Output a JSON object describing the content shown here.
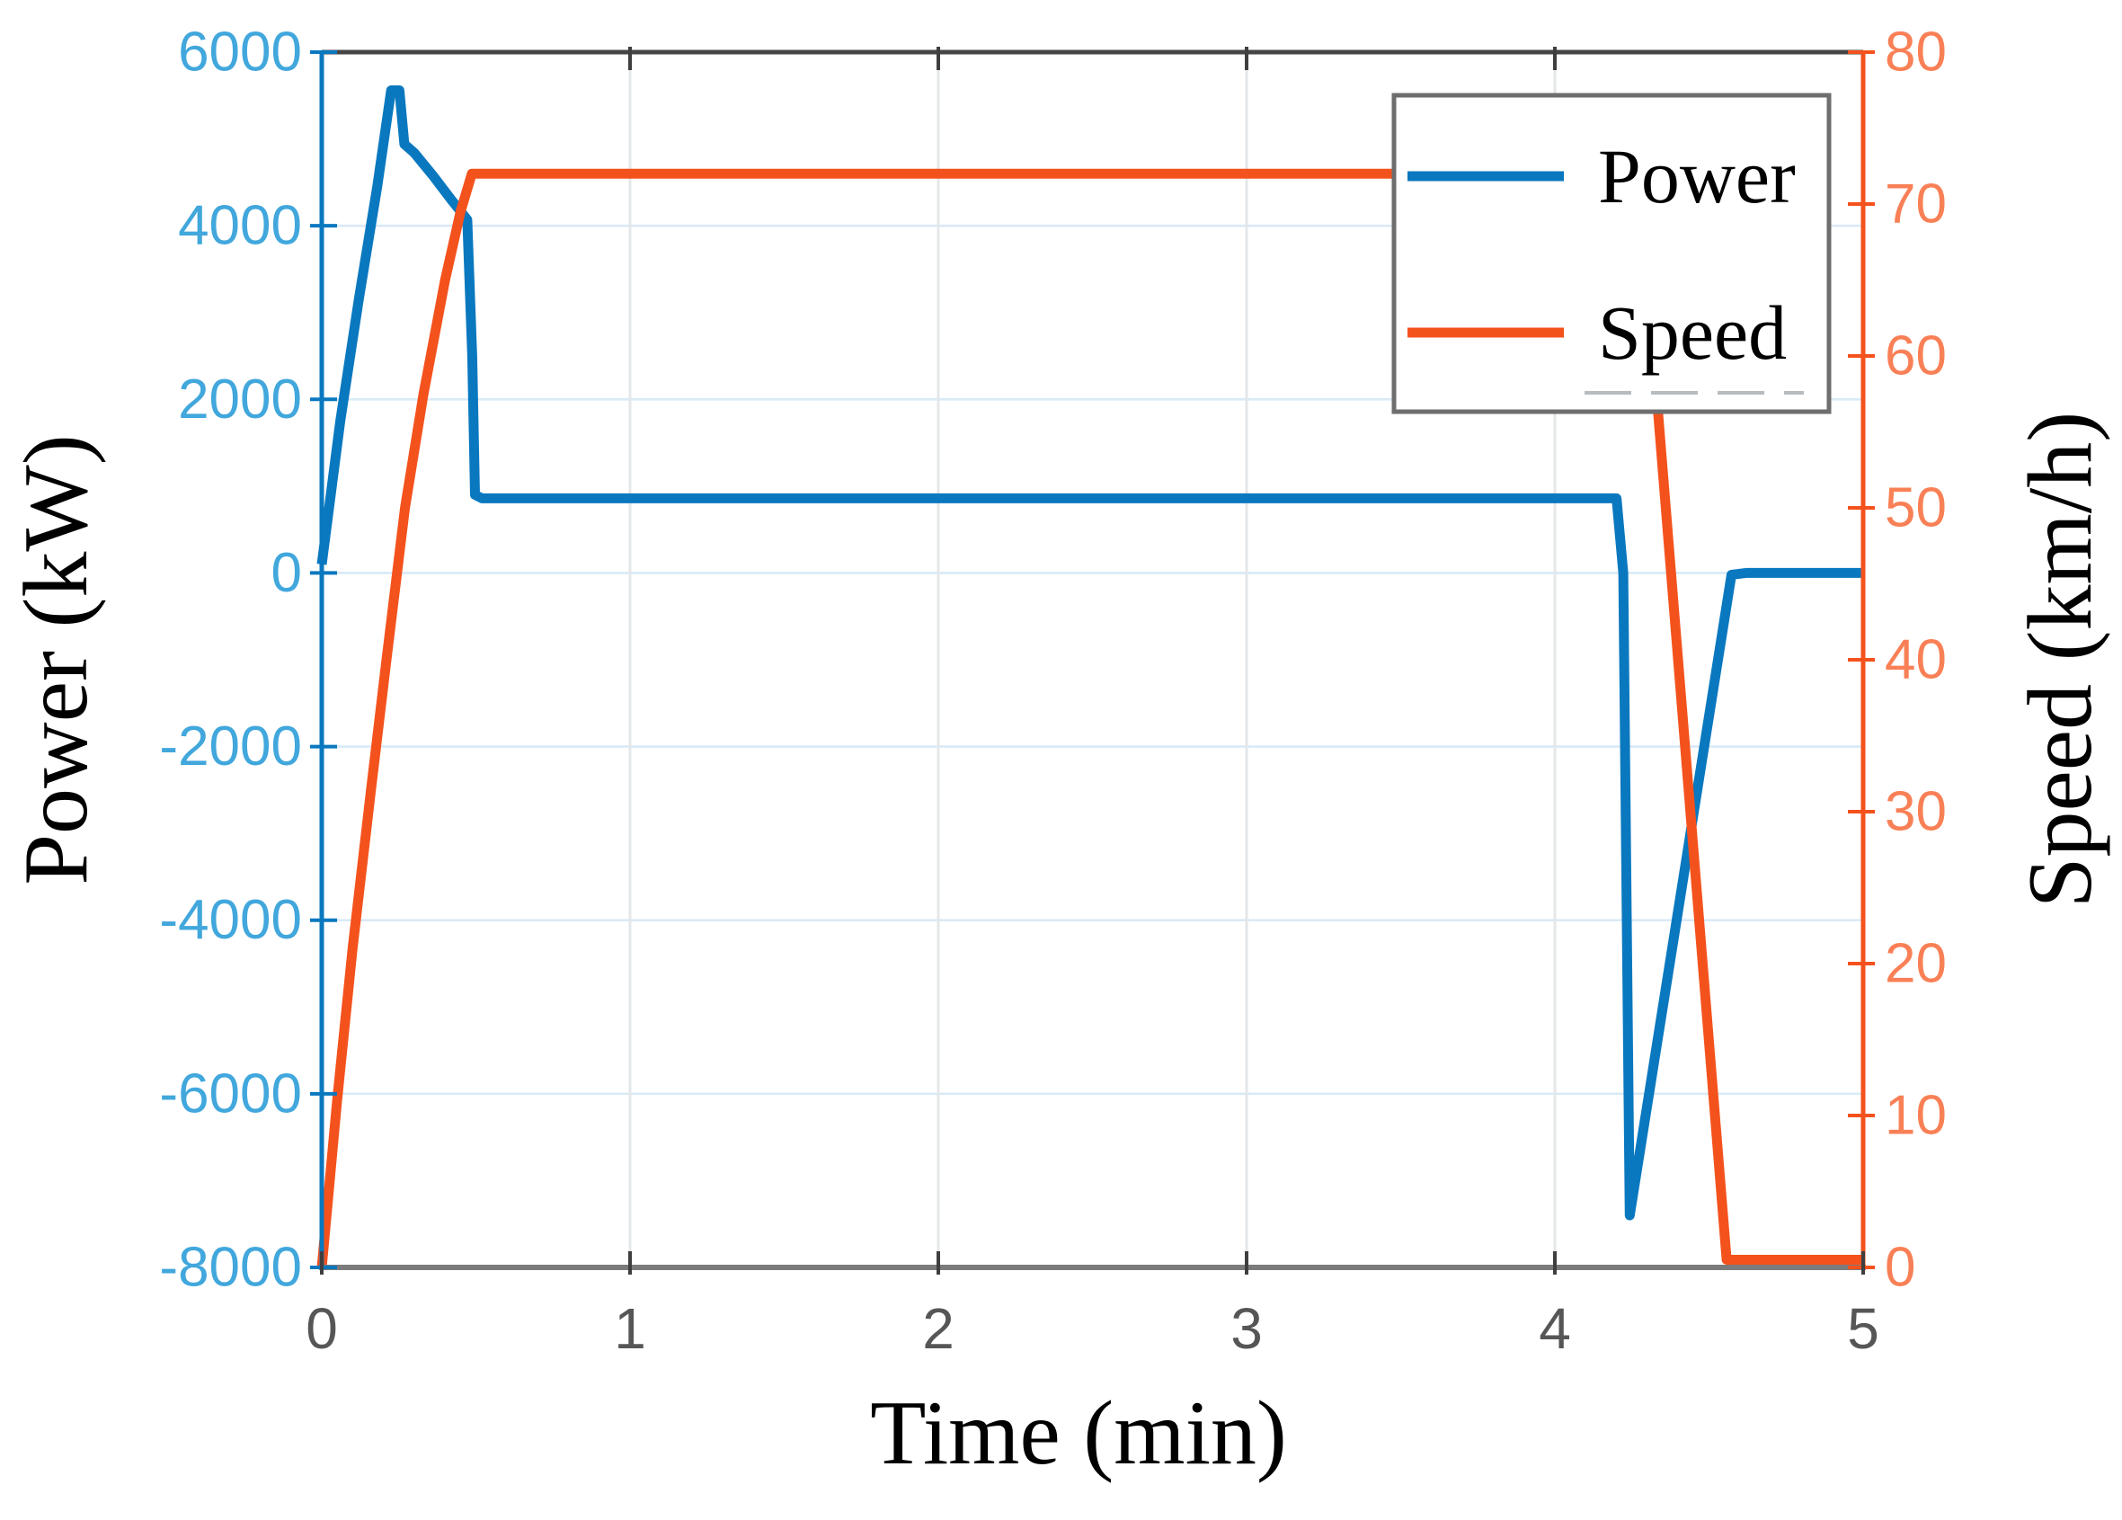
{
  "chart_data": {
    "type": "line",
    "title": "",
    "xlabel": "Time (min)",
    "ylabel_left": "Power (kW)",
    "ylabel_right": "Speed (km/h)",
    "x_range": [
      0,
      5
    ],
    "y_left_range": [
      -8000,
      6000
    ],
    "y_right_range": [
      0,
      80
    ],
    "x_ticks": [
      0,
      1,
      2,
      3,
      4,
      5
    ],
    "x_tick_labels": [
      "0",
      "1",
      "2",
      "3",
      "4",
      "5"
    ],
    "y_left_ticks": [
      6000,
      4000,
      2000,
      0,
      -2000,
      -4000,
      -6000,
      -8000
    ],
    "y_left_tick_labels": [
      "6000",
      "4000",
      "2000",
      "0",
      "-2000",
      "-4000",
      "-6000",
      "-8000"
    ],
    "y_right_ticks": [
      80,
      70,
      60,
      50,
      40,
      30,
      20,
      10,
      0
    ],
    "y_right_tick_labels": [
      "80",
      "70",
      "60",
      "50",
      "40",
      "30",
      "20",
      "10",
      "0"
    ],
    "grid": {
      "horizontal_from_left_axis": true,
      "vertical_from_x_axis": true,
      "h_gridline_color": "#d9eaf7",
      "v_gridline_color": "#e4e7e9"
    },
    "legend": {
      "position": "top-right",
      "border_color": "#6e6e6e",
      "background": "#ffffff",
      "items": [
        {
          "label": "Power",
          "color": "#0a78bf"
        },
        {
          "label": "Speed",
          "color": "#f4521d"
        }
      ]
    },
    "series": [
      {
        "name": "Power",
        "axis": "left",
        "color": "#0a78bf",
        "points": [
          [
            0,
            100
          ],
          [
            0.06,
            1750
          ],
          [
            0.12,
            3150
          ],
          [
            0.18,
            4450
          ],
          [
            0.225,
            5560
          ],
          [
            0.252,
            5560
          ],
          [
            0.268,
            4940
          ],
          [
            0.3,
            4840
          ],
          [
            0.36,
            4580
          ],
          [
            0.42,
            4300
          ],
          [
            0.472,
            4070
          ],
          [
            0.488,
            2500
          ],
          [
            0.497,
            900
          ],
          [
            0.52,
            860
          ],
          [
            4.2,
            860
          ],
          [
            4.222,
            0
          ],
          [
            4.243,
            -7400
          ],
          [
            4.573,
            -20
          ],
          [
            4.62,
            0
          ],
          [
            5.0,
            0
          ]
        ]
      },
      {
        "name": "Speed",
        "axis": "right",
        "color": "#f4521d",
        "points": [
          [
            0,
            0
          ],
          [
            0.05,
            11
          ],
          [
            0.1,
            21
          ],
          [
            0.16,
            31.5
          ],
          [
            0.21,
            40
          ],
          [
            0.27,
            50
          ],
          [
            0.33,
            57.5
          ],
          [
            0.4,
            65
          ],
          [
            0.45,
            69.5
          ],
          [
            0.487,
            72
          ],
          [
            4.272,
            72
          ],
          [
            4.557,
            0.5
          ],
          [
            5.0,
            0.5
          ]
        ]
      }
    ],
    "colors": {
      "left_axis_spine": "#0a78bf",
      "left_tick_labels": "#41a7dc",
      "right_axis_spine": "#f4521d",
      "right_tick_labels": "#f98056",
      "top_spine": "#454545",
      "bottom_spine": "#7b7b7b",
      "x_tick_labels": "#565656",
      "x_tick_marks": "#3f3f3f",
      "legend_artifact": "#b6bcbf"
    }
  }
}
